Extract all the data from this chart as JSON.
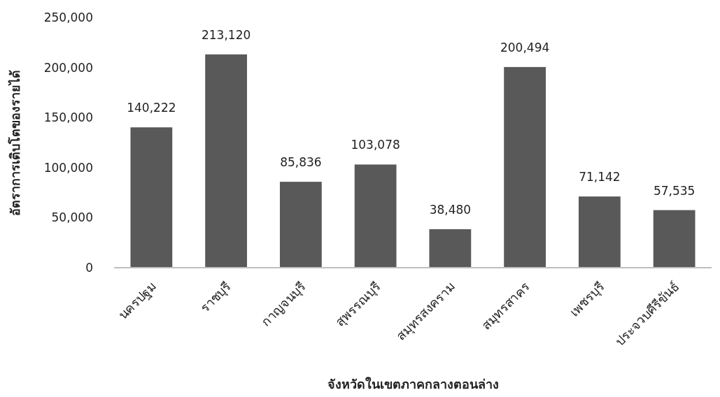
{
  "chart_data": {
    "type": "bar",
    "xlabel": "จังหวัดในเขตภาคกลางตอนล่าง",
    "ylabel": "อัตราการเติบโตของรายได้",
    "categories": [
      "นครปฐม",
      "ราชบุรี",
      "กาญจนบุรี",
      "สุพรรณบุรี",
      "สมุทรสงคราม",
      "สมุทรสาคร",
      "เพชรบุรี",
      "ประจวบคีรีขันธ์"
    ],
    "values": [
      140222,
      213120,
      85836,
      103078,
      38480,
      200494,
      71142,
      57535
    ],
    "value_labels": [
      "140,222",
      "213,120",
      "85,836",
      "103,078",
      "38,480",
      "200,494",
      "71,142",
      "57,535"
    ],
    "color": "#595959",
    "ylim": [
      0,
      250000
    ],
    "yticks": [
      0,
      {
        "value": 50000,
        "label": "50,000"
      },
      {
        "value": 100000,
        "label": "100,000"
      },
      {
        "value": 150000,
        "label": "150,000"
      },
      {
        "value": 200000,
        "label": "200,000"
      },
      {
        "value": 250000,
        "label": "250,000"
      }
    ],
    "grid": false
  }
}
